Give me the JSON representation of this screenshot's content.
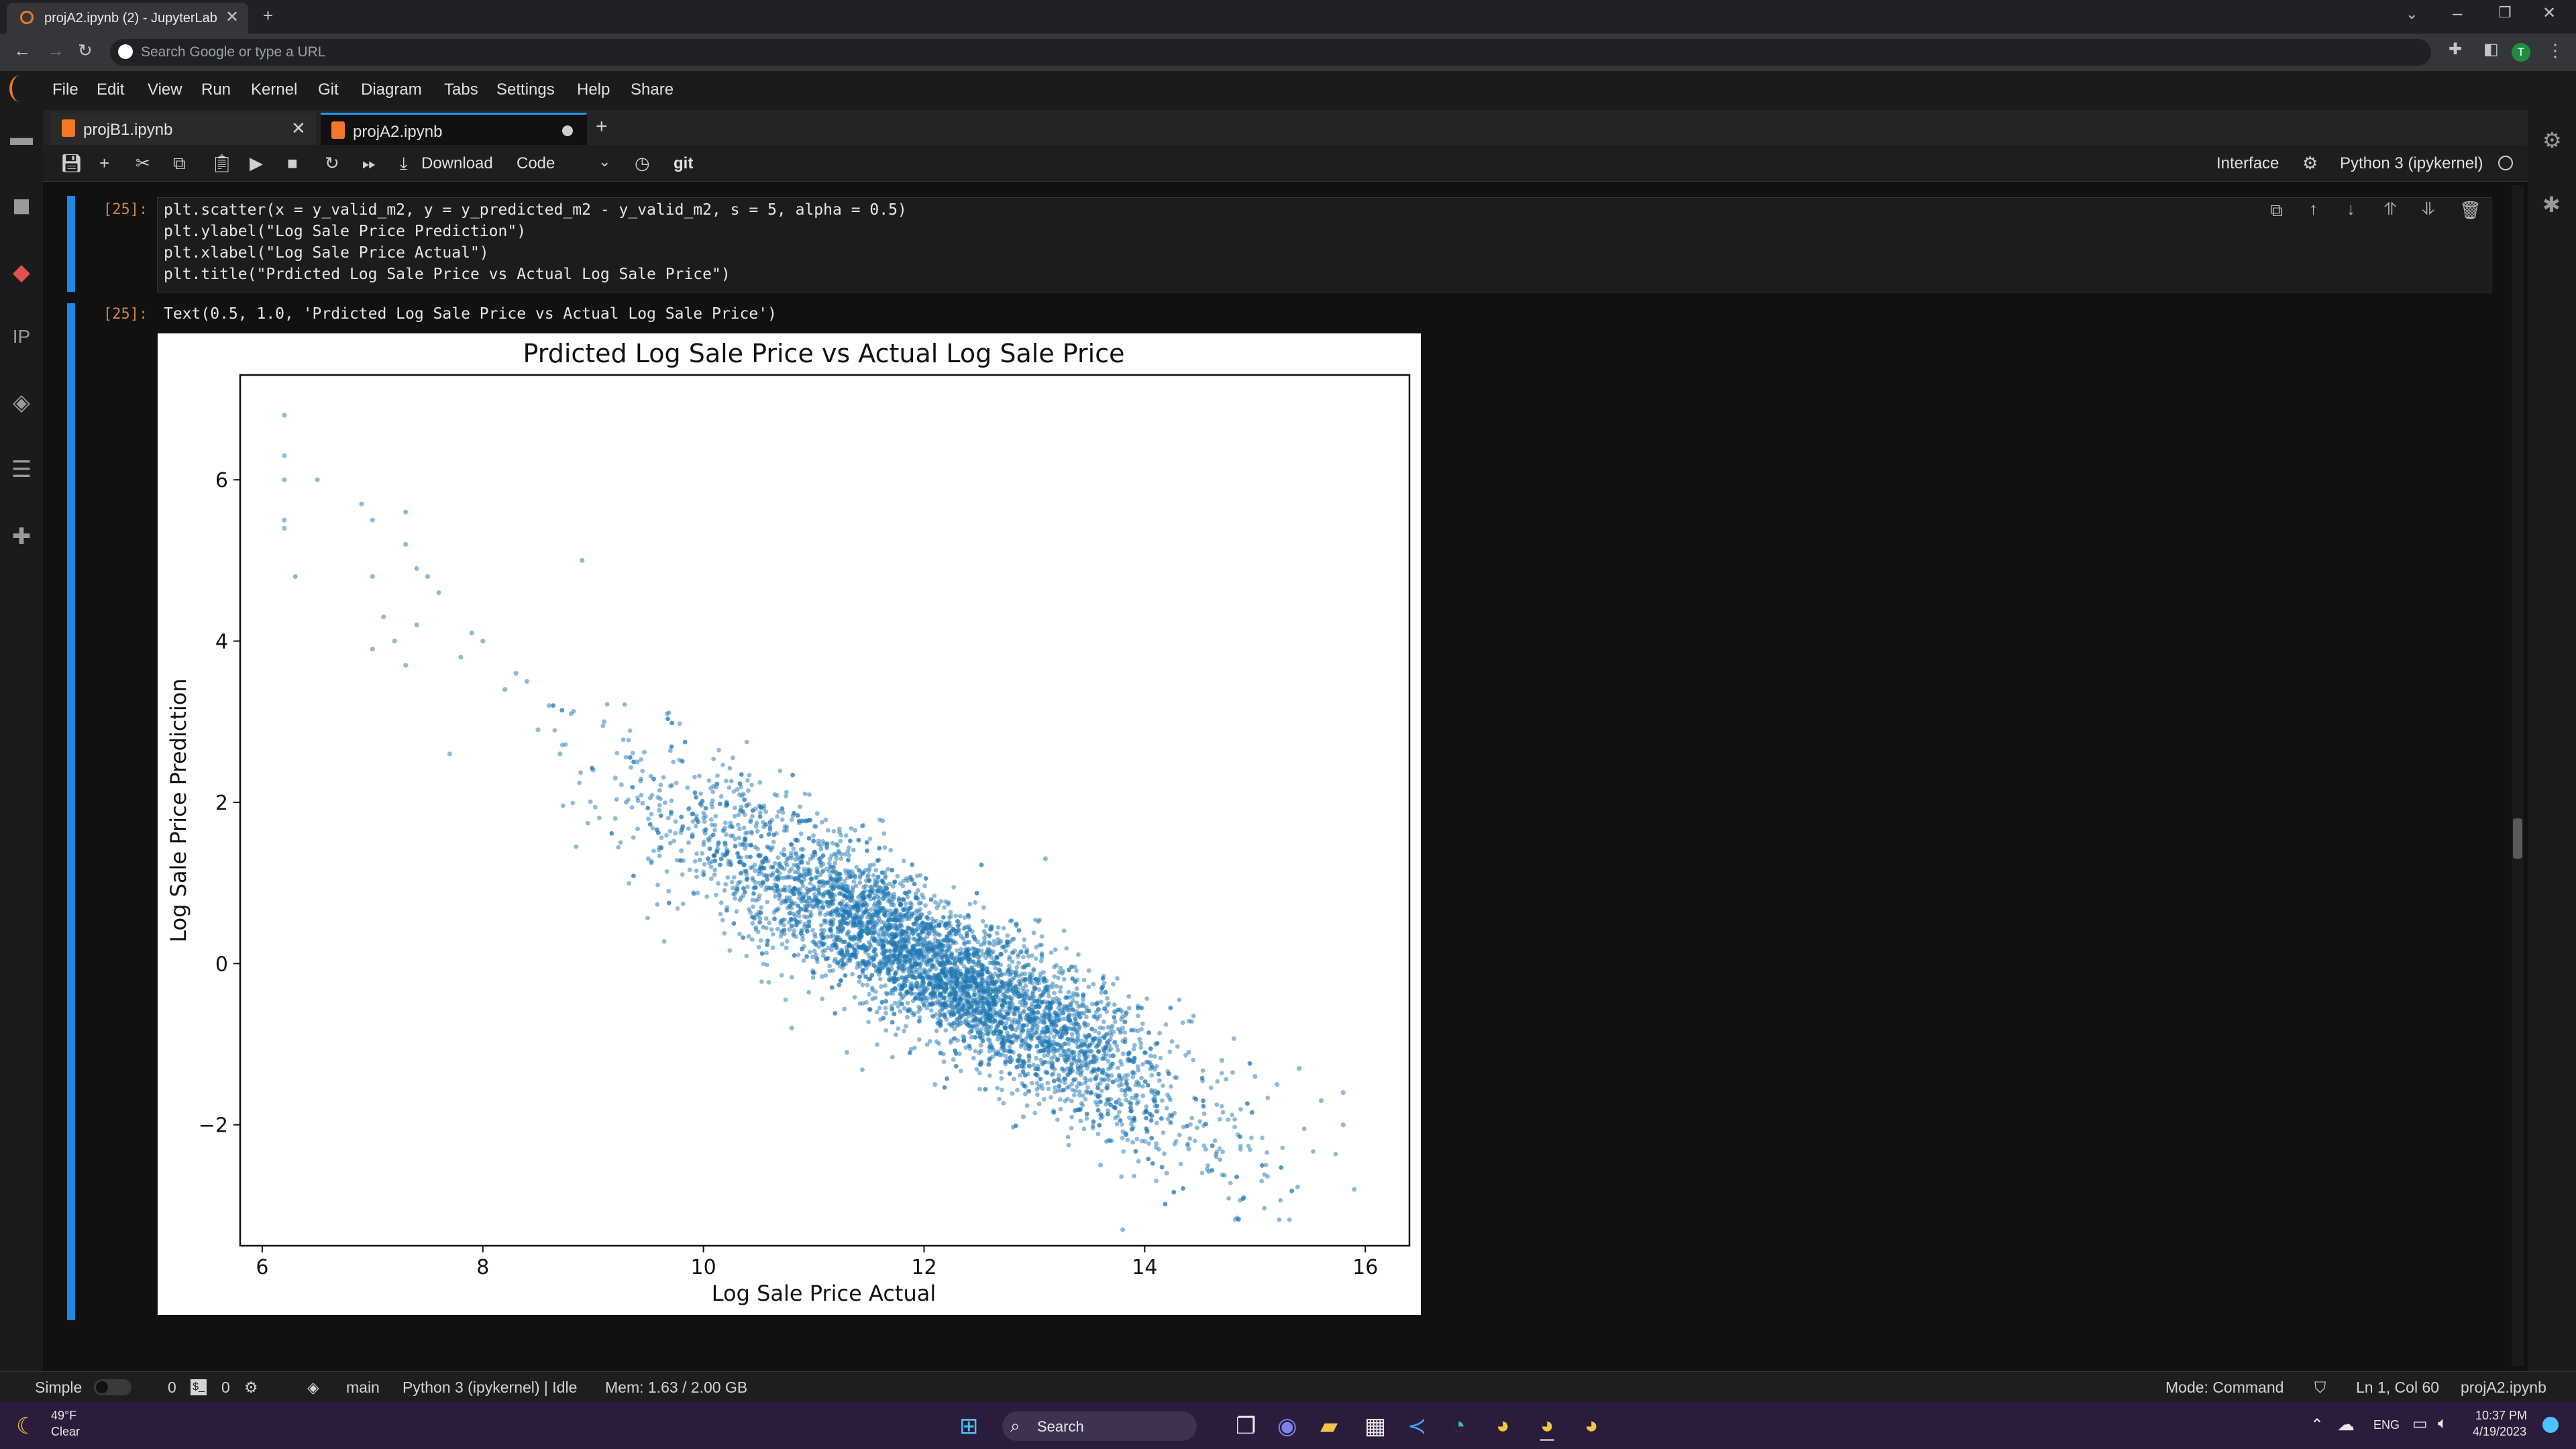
{
  "browser": {
    "tab_title": "projA2.ipynb (2) - JupyterLab",
    "address_placeholder": "Search Google or type a URL",
    "profile_initial": "T"
  },
  "menu": [
    "File",
    "Edit",
    "View",
    "Run",
    "Kernel",
    "Git",
    "Diagram",
    "Tabs",
    "Settings",
    "Help",
    "Share"
  ],
  "doc_tabs": [
    {
      "label": "projB1.ipynb",
      "active": false
    },
    {
      "label": "projA2.ipynb",
      "active": true
    }
  ],
  "toolbar": {
    "download_label": "Download",
    "celltype": "Code",
    "git_label": "git",
    "interface_label": "Interface",
    "kernel_label": "Python 3 (ipykernel)"
  },
  "cell": {
    "in_prompt": "[25]:",
    "out_prompt": "[25]:",
    "code_lines": [
      "plt.scatter(x = y_valid_m2, y = y_predicted_m2 - y_valid_m2, s = 5, alpha = 0.5)",
      "plt.ylabel(\"Log Sale Price Prediction\")",
      "plt.xlabel(\"Log Sale Price Actual\")",
      "plt.title(\"Prdicted Log Sale Price vs Actual Log Sale Price\")"
    ],
    "output_text": "Text(0.5, 1.0, 'Prdicted Log Sale Price vs Actual Log Sale Price')"
  },
  "chart_data": {
    "type": "scatter",
    "title": "Prdicted Log Sale Price vs Actual Log Sale Price",
    "xlabel": "Log Sale Price Actual",
    "ylabel": "Log Sale Price Prediction",
    "xlim": [
      5.8,
      16.4
    ],
    "ylim": [
      -3.5,
      7.3
    ],
    "xticks": [
      6,
      8,
      10,
      12,
      14,
      16
    ],
    "yticks": [
      -2,
      0,
      2,
      4,
      6
    ],
    "grid": false,
    "point_color": "#1f77b4",
    "alpha": 0.5,
    "point_size": 5,
    "trend": {
      "slope": -0.78,
      "intercept": 9.4
    },
    "x": [
      6.2,
      6.2,
      6.2,
      6.2,
      6.2,
      6.5,
      6.3,
      6.9,
      7.0,
      7.1,
      7.3,
      7.3,
      7.4,
      7.5,
      7.6,
      7.2,
      7.0,
      7.0,
      7.3,
      7.4,
      7.8,
      7.9,
      8.0,
      7.7,
      8.4,
      8.2,
      8.8,
      8.9,
      8.6,
      8.3,
      8.5,
      8.7,
      9.0,
      9.1,
      9.2,
      9.2,
      9.3,
      9.4,
      9.6,
      9.7,
      9.8,
      9.5,
      9.9,
      10.1,
      10.3,
      10.5,
      10.7,
      10.9,
      11.2,
      11.4,
      11.6,
      11.8,
      12.1,
      12.3,
      12.6,
      12.8,
      13.0,
      13.3,
      13.5,
      13.8,
      14.1,
      14.4,
      14.7,
      15.0,
      15.2,
      15.4,
      15.6,
      15.8,
      15.9,
      15.8,
      14.2,
      13.6,
      13.8,
      14.9,
      14.4,
      12.1,
      11.3,
      10.8,
      13.1,
      12.9
    ],
    "y": [
      6.8,
      6.3,
      6.0,
      5.5,
      5.4,
      6.0,
      4.8,
      5.7,
      5.5,
      4.3,
      5.6,
      5.2,
      4.9,
      4.8,
      4.6,
      4.0,
      4.8,
      3.9,
      3.7,
      4.2,
      3.8,
      4.1,
      4.0,
      2.6,
      3.5,
      3.4,
      3.1,
      5.0,
      3.2,
      3.6,
      2.9,
      2.6,
      2.4,
      3.0,
      2.3,
      1.8,
      2.0,
      2.5,
      1.9,
      2.2,
      1.4,
      1.3,
      1.6,
      1.1,
      0.9,
      0.8,
      0.5,
      0.3,
      0.2,
      0.0,
      -0.1,
      -0.3,
      -0.4,
      -0.5,
      -0.6,
      -0.5,
      -0.7,
      -0.8,
      -0.9,
      -0.8,
      -1.0,
      -1.1,
      -1.2,
      -1.4,
      -1.5,
      -1.3,
      -1.7,
      -1.6,
      -2.8,
      -2.0,
      -2.6,
      -2.5,
      -3.3,
      -2.9,
      -2.3,
      -1.5,
      -1.1,
      -0.8,
      1.3,
      -1.9
    ]
  },
  "status": {
    "mode_toggle": "Simple",
    "count1": "0",
    "count2": "0",
    "branch": "main",
    "kernel_state": "Python 3 (ipykernel) | Idle",
    "mem": "Mem: 1.63 / 2.00 GB",
    "mode": "Mode: Command",
    "position": "Ln 1, Col 60",
    "filename": "projA2.ipynb"
  },
  "taskbar": {
    "weather_temp": "49°F",
    "weather_desc": "Clear",
    "search_label": "Search",
    "lang": "ENG",
    "time": "10:37 PM",
    "date": "4/19/2023"
  }
}
